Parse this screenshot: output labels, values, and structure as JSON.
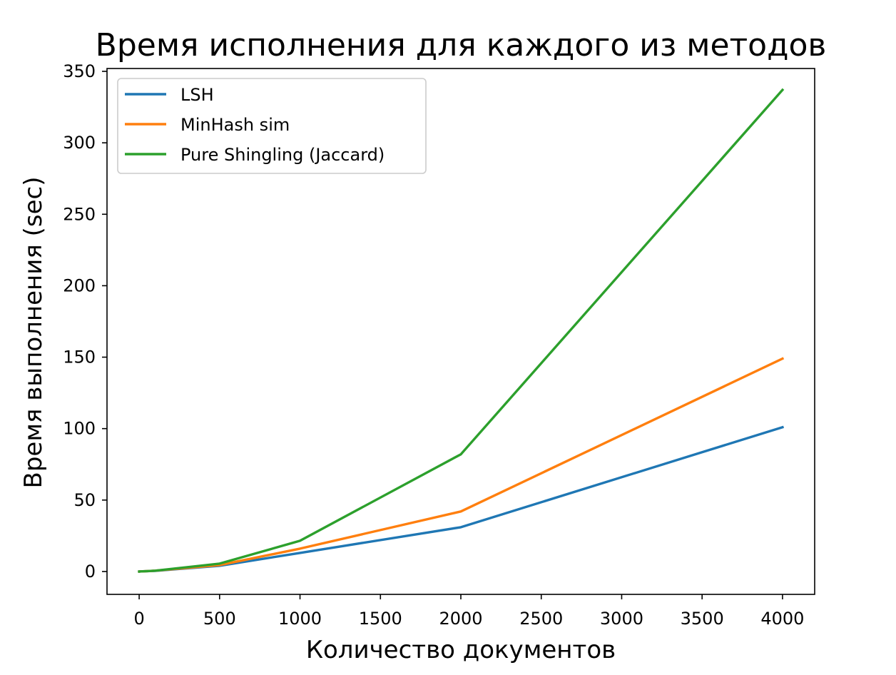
{
  "chart_data": {
    "type": "line",
    "title": "Время исполнения для каждого из методов",
    "xlabel": "Количество документов",
    "ylabel": "Время выполнения (sec)",
    "xlim": [
      -200,
      4200
    ],
    "ylim": [
      -16,
      352
    ],
    "xticks": [
      0,
      500,
      1000,
      1500,
      2000,
      2500,
      3000,
      3500,
      4000
    ],
    "yticks": [
      0,
      50,
      100,
      150,
      200,
      250,
      300,
      350
    ],
    "grid": false,
    "legend_position": "top-left",
    "series": [
      {
        "name": "LSH",
        "color": "#1f77b4",
        "x": [
          0,
          10,
          50,
          100,
          500,
          1000,
          2000,
          4000
        ],
        "y": [
          0,
          0.1,
          0.3,
          0.5,
          4,
          13,
          31,
          101
        ]
      },
      {
        "name": "MinHash sim",
        "color": "#ff7f0e",
        "x": [
          0,
          10,
          50,
          100,
          500,
          1000,
          2000,
          4000
        ],
        "y": [
          0,
          0.1,
          0.3,
          0.6,
          4.5,
          16,
          42,
          149
        ]
      },
      {
        "name": "Pure Shingling (Jaccard)",
        "color": "#2ca02c",
        "x": [
          0,
          10,
          50,
          100,
          500,
          1000,
          2000,
          4000
        ],
        "y": [
          0,
          0.1,
          0.3,
          0.6,
          5.5,
          21.5,
          82,
          337
        ]
      }
    ]
  }
}
